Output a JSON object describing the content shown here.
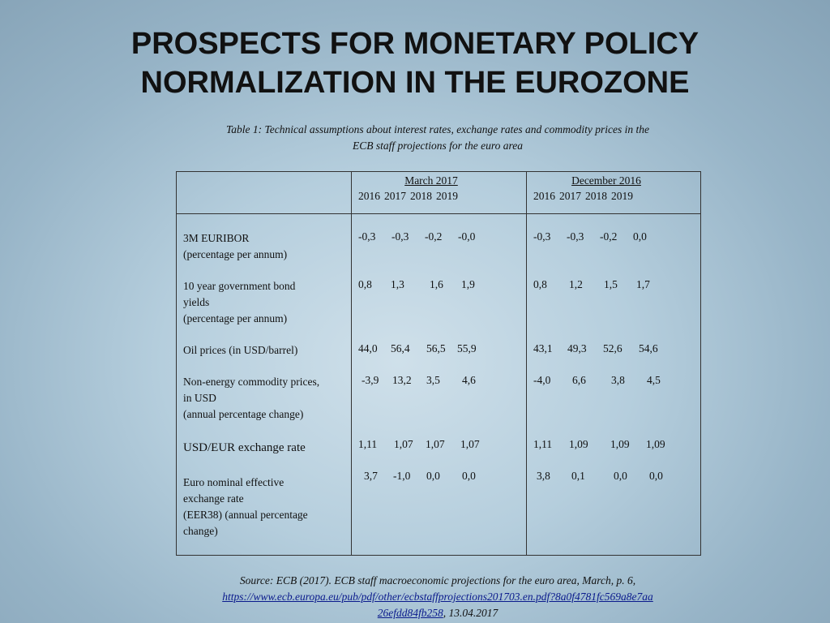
{
  "title_line1": "PROSPECTS FOR MONETARY POLICY",
  "title_line2": "NORMALIZATION IN THE EUROZONE",
  "caption_line1": "Table 1:  Technical assumptions about interest rates, exchange rates and commodity prices in the",
  "caption_line2": "ECB staff projections for the euro area",
  "table": {
    "headers": [
      {
        "period": "March 2017",
        "years": [
          "2016",
          "2017",
          "2018",
          "2019"
        ]
      },
      {
        "period": "December 2016",
        "years": [
          "2016",
          "2017",
          "2018",
          "2019"
        ]
      }
    ],
    "rows": [
      {
        "label": [
          "3M EURIBOR",
          "(percentage per annum)"
        ],
        "march": [
          "-0,3",
          "-0,3",
          "-0,2",
          "-0,0"
        ],
        "december": [
          "-0,3",
          "-0,3",
          "-0,2",
          "0,0"
        ]
      },
      {
        "label": [
          "10 year government bond",
          "yields",
          "(percentage per annum)"
        ],
        "march": [
          "0,8",
          "1,3",
          "1,6",
          "1,9"
        ],
        "december": [
          "0,8",
          "1,2",
          "1,5",
          "1,7"
        ]
      },
      {
        "label": [
          "Oil prices (in USD/barrel)"
        ],
        "march": [
          "44,0",
          "56,4",
          "56,5",
          "55,9"
        ],
        "december": [
          "43,1",
          "49,3",
          "52,6",
          "54,6"
        ]
      },
      {
        "label": [
          "Non-energy commodity prices,",
          "in USD",
          "(annual percentage change)"
        ],
        "march": [
          "-3,9",
          "13,2",
          "3,5",
          "4,6"
        ],
        "december": [
          "-4,0",
          "6,6",
          "3,8",
          "4,5"
        ]
      },
      {
        "label": [
          "USD/EUR exchange rate"
        ],
        "march": [
          "1,11",
          "1,07",
          "1,07",
          "1,07"
        ],
        "december": [
          "1,11",
          "1,09",
          "1,09",
          "1,09"
        ]
      },
      {
        "label": [
          "Euro nominal effective",
          "exchange rate",
          "(EER38) (annual percentage",
          "change)"
        ],
        "march": [
          "3,7",
          "-1,0",
          "0,0",
          "0,0"
        ],
        "december": [
          "3,8",
          "0,1",
          "0,0",
          "0,0"
        ]
      }
    ]
  },
  "source": {
    "text": "Source: ECB (2017). ECB staff macroeconomic projections for the euro area, March, p. 6,",
    "link_line1": "https://www.ecb.europa.eu/pub/pdf/other/ecbstaffprojections201703.en.pdf?8a0f4781fc569a8e7aa",
    "link_line2": "26efdd84fb258",
    "date": ", 13.04.2017"
  }
}
